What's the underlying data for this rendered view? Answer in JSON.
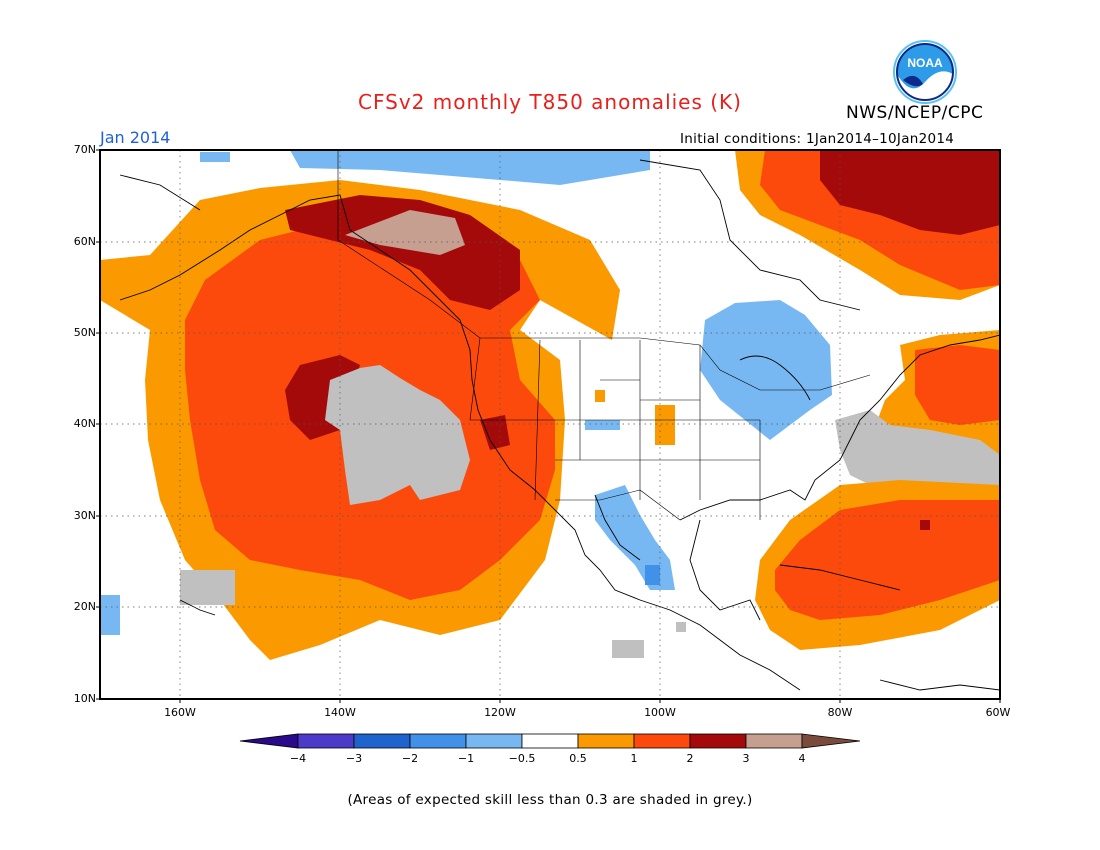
{
  "header": {
    "title": "CFSv2 monthly T850 anomalies (K)",
    "organization": "NWS/NCEP/CPC",
    "month": "Jan 2014",
    "initial_conditions": "Initial conditions: 1Jan2014–10Jan2014",
    "logo_text": "NOAA"
  },
  "map": {
    "lat_labels": [
      "70N",
      "60N",
      "50N",
      "40N",
      "30N",
      "20N",
      "10N"
    ],
    "lon_labels": [
      "160W",
      "140W",
      "120W",
      "100W",
      "80W",
      "60W"
    ],
    "lat_range": [
      10,
      70
    ],
    "lon_range": [
      -172,
      -60
    ]
  },
  "colorbar": {
    "labels": [
      "−4",
      "−3",
      "−2",
      "−1",
      "−0.5",
      "0.5",
      "1",
      "2",
      "3",
      "4"
    ],
    "colors": [
      "#2a0a8a",
      "#4c3ac8",
      "#1f64cc",
      "#4291e8",
      "#78b8f2",
      "#ffffff",
      "#fb9a00",
      "#fb4a0c",
      "#a40a0a",
      "#c79f91",
      "#7a4a3a"
    ]
  },
  "footnote": "(Areas of expected skill less than 0.3 are shaded in grey.)"
}
